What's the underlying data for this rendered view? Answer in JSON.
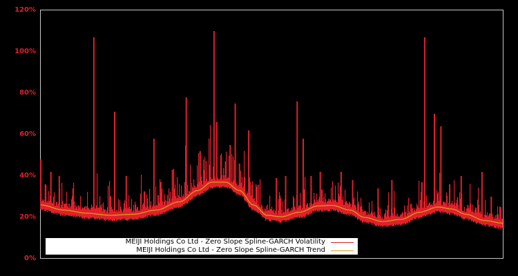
{
  "chart_data": {
    "type": "bar+line",
    "title": "",
    "xlabel": "",
    "ylabel": "",
    "ylim": [
      0,
      120
    ],
    "yticks": [
      "0%",
      "20%",
      "40%",
      "60%",
      "80%",
      "100%",
      "120%"
    ],
    "grid": false,
    "legend_position": "bottom-left inside",
    "background": "#000000",
    "series": [
      {
        "name": "MEIJI Holdings Co Ltd - Zero Slope Spline-GARCH Volatility",
        "type": "bar",
        "color": "#e0202a",
        "baseline_offset_pct": 1.5,
        "spikes": [
          {
            "x": 0.0,
            "y": 48
          },
          {
            "x": 0.01,
            "y": 36
          },
          {
            "x": 0.022,
            "y": 42
          },
          {
            "x": 0.04,
            "y": 40
          },
          {
            "x": 0.07,
            "y": 34
          },
          {
            "x": 0.115,
            "y": 107
          },
          {
            "x": 0.15,
            "y": 30
          },
          {
            "x": 0.16,
            "y": 71
          },
          {
            "x": 0.185,
            "y": 40
          },
          {
            "x": 0.245,
            "y": 58
          },
          {
            "x": 0.26,
            "y": 37
          },
          {
            "x": 0.285,
            "y": 43
          },
          {
            "x": 0.315,
            "y": 78
          },
          {
            "x": 0.345,
            "y": 52
          },
          {
            "x": 0.375,
            "y": 110
          },
          {
            "x": 0.381,
            "y": 66
          },
          {
            "x": 0.39,
            "y": 50
          },
          {
            "x": 0.4,
            "y": 47
          },
          {
            "x": 0.41,
            "y": 55
          },
          {
            "x": 0.421,
            "y": 75
          },
          {
            "x": 0.43,
            "y": 46
          },
          {
            "x": 0.45,
            "y": 62
          },
          {
            "x": 0.51,
            "y": 39
          },
          {
            "x": 0.53,
            "y": 40
          },
          {
            "x": 0.555,
            "y": 76
          },
          {
            "x": 0.568,
            "y": 58
          },
          {
            "x": 0.585,
            "y": 40
          },
          {
            "x": 0.605,
            "y": 42
          },
          {
            "x": 0.65,
            "y": 42
          },
          {
            "x": 0.675,
            "y": 38
          },
          {
            "x": 0.73,
            "y": 34
          },
          {
            "x": 0.76,
            "y": 38
          },
          {
            "x": 0.825,
            "y": 37
          },
          {
            "x": 0.831,
            "y": 107
          },
          {
            "x": 0.852,
            "y": 70
          },
          {
            "x": 0.866,
            "y": 64
          },
          {
            "x": 0.885,
            "y": 36
          },
          {
            "x": 0.91,
            "y": 40
          },
          {
            "x": 0.955,
            "y": 42
          },
          {
            "x": 0.975,
            "y": 30
          },
          {
            "x": 0.995,
            "y": 25
          }
        ]
      },
      {
        "name": "MEIJI Holdings Co Ltd - Zero Slope Spline-GARCH Trend",
        "type": "line",
        "color": "#d4a017",
        "points": [
          {
            "x": 0.0,
            "y": 26
          },
          {
            "x": 0.05,
            "y": 23.5
          },
          {
            "x": 0.1,
            "y": 22
          },
          {
            "x": 0.15,
            "y": 21
          },
          {
            "x": 0.2,
            "y": 21.5
          },
          {
            "x": 0.25,
            "y": 23.5
          },
          {
            "x": 0.3,
            "y": 27.5
          },
          {
            "x": 0.34,
            "y": 33
          },
          {
            "x": 0.37,
            "y": 37
          },
          {
            "x": 0.4,
            "y": 37
          },
          {
            "x": 0.43,
            "y": 33
          },
          {
            "x": 0.46,
            "y": 26
          },
          {
            "x": 0.49,
            "y": 21
          },
          {
            "x": 0.52,
            "y": 20.3
          },
          {
            "x": 0.56,
            "y": 22.5
          },
          {
            "x": 0.6,
            "y": 25.5
          },
          {
            "x": 0.63,
            "y": 25.8
          },
          {
            "x": 0.67,
            "y": 23.5
          },
          {
            "x": 0.7,
            "y": 20
          },
          {
            "x": 0.74,
            "y": 18
          },
          {
            "x": 0.78,
            "y": 19
          },
          {
            "x": 0.82,
            "y": 22.5
          },
          {
            "x": 0.86,
            "y": 25
          },
          {
            "x": 0.89,
            "y": 24
          },
          {
            "x": 0.92,
            "y": 21.5
          },
          {
            "x": 0.96,
            "y": 18.5
          },
          {
            "x": 1.0,
            "y": 17.2
          }
        ]
      }
    ]
  },
  "legend": {
    "volatility_label": "MEIJI Holdings Co Ltd - Zero Slope Spline-GARCH Volatility",
    "trend_label": "MEIJI Holdings Co Ltd - Zero Slope Spline-GARCH Trend"
  },
  "colors": {
    "volatility": "#e0202a",
    "trend": "#d4a017",
    "axis": "#c8c8c8",
    "tick_label": "#e0202a"
  }
}
